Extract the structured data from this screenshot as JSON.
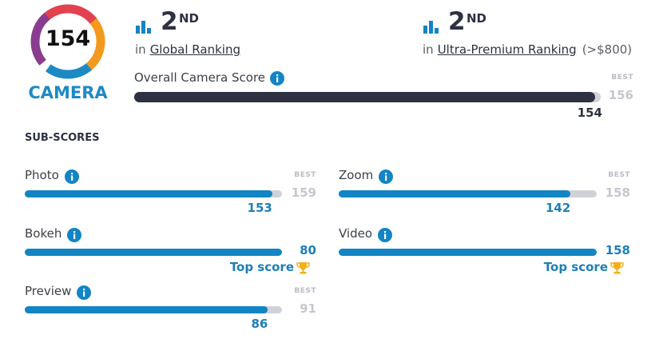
{
  "badge": {
    "score": 154,
    "label": "CAMERA"
  },
  "rankings": [
    {
      "rank": 2,
      "suffix": "ND",
      "prefix": "in",
      "link": "Global Ranking"
    },
    {
      "rank": 2,
      "suffix": "ND",
      "prefix": "in",
      "link": "Ultra-Premium Ranking",
      "note": "(>$800)"
    }
  ],
  "overall": {
    "label": "Overall Camera Score",
    "best_label": "BEST",
    "best": 156,
    "score": 154
  },
  "sub_scores": {
    "title": "SUB-SCORES",
    "items": [
      {
        "label": "Photo",
        "score": 153,
        "best_label": "BEST",
        "best": 159
      },
      {
        "label": "Zoom",
        "score": 142,
        "best_label": "BEST",
        "best": 158
      },
      {
        "label": "Bokeh",
        "score": 80,
        "top_label": "Top score"
      },
      {
        "label": "Video",
        "score": 158,
        "top_label": "Top score"
      },
      {
        "label": "Preview",
        "score": 86,
        "best_label": "BEST",
        "best": 91
      }
    ]
  }
}
